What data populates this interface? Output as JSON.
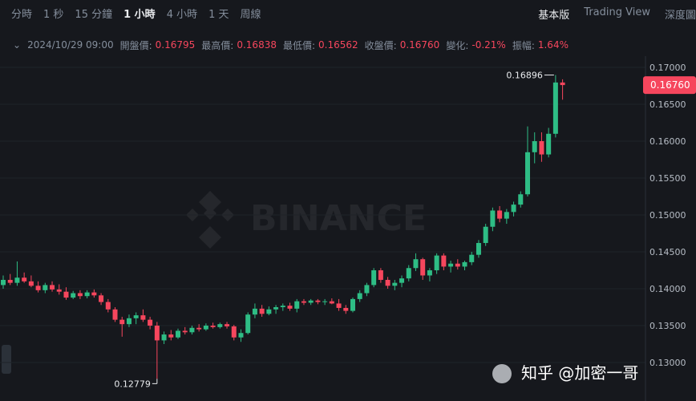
{
  "toolbar": {
    "intervals": [
      "分時",
      "1 秒",
      "15 分鐘",
      "1 小時",
      "4 小時",
      "1 天",
      "周線"
    ],
    "active": "1 小時",
    "views": [
      "基本版",
      "Trading View",
      "深度圖"
    ]
  },
  "header": {
    "time": "2024/10/29 09:00",
    "fields": [
      {
        "label": "開盤價:",
        "value": "0.16795"
      },
      {
        "label": "最高價:",
        "value": "0.16838"
      },
      {
        "label": "最低價:",
        "value": "0.16562"
      },
      {
        "label": "收盤價:",
        "value": "0.16760"
      },
      {
        "label": "變化:",
        "value": "-0.21%"
      },
      {
        "label": "振幅:",
        "value": "1.64%"
      }
    ]
  },
  "watermark": "BINANCE",
  "credit": "知乎 @加密一哥",
  "chart_data": {
    "type": "candlestick",
    "up_color": "#2ebd85",
    "down_color": "#f6465d",
    "ylim": [
      0.1256,
      0.171
    ],
    "yticks": [
      {
        "value": 0.17,
        "label": "0.17000"
      },
      {
        "value": 0.165,
        "label": "0.16500"
      },
      {
        "value": 0.16,
        "label": "0.16000"
      },
      {
        "value": 0.155,
        "label": "0.15500"
      },
      {
        "value": 0.15,
        "label": "0.15000"
      },
      {
        "value": 0.145,
        "label": "0.14500"
      },
      {
        "value": 0.14,
        "label": "0.14000"
      },
      {
        "value": 0.135,
        "label": "0.13500"
      },
      {
        "value": 0.13,
        "label": "0.13000"
      }
    ],
    "last_price": {
      "value": 0.1676,
      "label": "0.16760"
    },
    "max_annotation": 0.16896,
    "min_annotation": 0.12779,
    "open": [
      0.1405,
      0.1412,
      0.1408,
      0.1415,
      0.141,
      0.1404,
      0.1398,
      0.1405,
      0.1399,
      0.1396,
      0.1388,
      0.1394,
      0.139,
      0.1395,
      0.1391,
      0.1382,
      0.1372,
      0.1358,
      0.1352,
      0.136,
      0.1364,
      0.1358,
      0.135,
      0.133,
      0.1338,
      0.1334,
      0.1343,
      0.1341,
      0.1347,
      0.1345,
      0.135,
      0.1348,
      0.1352,
      0.1349,
      0.1334,
      0.134,
      0.1365,
      0.1373,
      0.1366,
      0.1372,
      0.1375,
      0.1377,
      0.1373,
      0.1383,
      0.1381,
      0.1384,
      0.1382,
      0.1383,
      0.138,
      0.1374,
      0.137,
      0.1386,
      0.1394,
      0.1405,
      0.1425,
      0.1412,
      0.1404,
      0.1408,
      0.1414,
      0.1428,
      0.144,
      0.1418,
      0.1425,
      0.1445,
      0.143,
      0.1434,
      0.143,
      0.1436,
      0.1446,
      0.1462,
      0.1484,
      0.1506,
      0.1495,
      0.1504,
      0.1514,
      0.1528,
      0.1585,
      0.16,
      0.1582,
      0.161,
      0.16795
    ],
    "high": [
      0.1418,
      0.142,
      0.1437,
      0.1422,
      0.1418,
      0.141,
      0.1408,
      0.141,
      0.1406,
      0.1402,
      0.1397,
      0.1398,
      0.1398,
      0.1399,
      0.1394,
      0.1386,
      0.1375,
      0.1362,
      0.1365,
      0.1368,
      0.1372,
      0.1362,
      0.1355,
      0.1342,
      0.1344,
      0.1346,
      0.1348,
      0.135,
      0.1352,
      0.1353,
      0.1354,
      0.1354,
      0.1355,
      0.1351,
      0.1345,
      0.1368,
      0.138,
      0.1378,
      0.1376,
      0.1378,
      0.138,
      0.1381,
      0.1386,
      0.1386,
      0.1386,
      0.1386,
      0.1386,
      0.1387,
      0.1386,
      0.1378,
      0.1388,
      0.1398,
      0.1408,
      0.1428,
      0.1428,
      0.1416,
      0.1412,
      0.1418,
      0.1432,
      0.1448,
      0.1442,
      0.1428,
      0.1448,
      0.1448,
      0.1438,
      0.144,
      0.1438,
      0.145,
      0.1466,
      0.1488,
      0.151,
      0.1512,
      0.1508,
      0.1518,
      0.1532,
      0.162,
      0.1612,
      0.1612,
      0.1618,
      0.16896,
      0.16838
    ],
    "low": [
      0.14,
      0.1405,
      0.1404,
      0.1408,
      0.1402,
      0.1395,
      0.1394,
      0.1396,
      0.1392,
      0.1385,
      0.1386,
      0.1386,
      0.1387,
      0.1388,
      0.1378,
      0.1368,
      0.1355,
      0.1335,
      0.1348,
      0.1352,
      0.1355,
      0.1345,
      0.12779,
      0.1325,
      0.133,
      0.1332,
      0.1338,
      0.1338,
      0.1342,
      0.1343,
      0.1346,
      0.1346,
      0.1346,
      0.133,
      0.1328,
      0.1338,
      0.136,
      0.1362,
      0.1364,
      0.1366,
      0.137,
      0.137,
      0.1368,
      0.1378,
      0.1378,
      0.1379,
      0.1378,
      0.1379,
      0.137,
      0.1366,
      0.1368,
      0.1382,
      0.139,
      0.1402,
      0.1408,
      0.14,
      0.1398,
      0.1402,
      0.141,
      0.1424,
      0.1412,
      0.141,
      0.142,
      0.1425,
      0.1422,
      0.1426,
      0.1425,
      0.1432,
      0.1442,
      0.1458,
      0.1478,
      0.149,
      0.1488,
      0.1498,
      0.151,
      0.1525,
      0.157,
      0.1572,
      0.1578,
      0.1605,
      0.16562
    ],
    "close": [
      0.1412,
      0.1408,
      0.1415,
      0.141,
      0.1404,
      0.1398,
      0.1405,
      0.1399,
      0.1396,
      0.1388,
      0.1394,
      0.139,
      0.1395,
      0.1391,
      0.1382,
      0.1372,
      0.1358,
      0.1352,
      0.136,
      0.1364,
      0.1358,
      0.135,
      0.133,
      0.1338,
      0.1334,
      0.1343,
      0.1341,
      0.1347,
      0.1345,
      0.135,
      0.1348,
      0.1352,
      0.1349,
      0.1334,
      0.134,
      0.1365,
      0.1373,
      0.1366,
      0.1372,
      0.1375,
      0.1377,
      0.1373,
      0.1383,
      0.1381,
      0.1384,
      0.1382,
      0.1383,
      0.138,
      0.1374,
      0.137,
      0.1386,
      0.1394,
      0.1405,
      0.1425,
      0.1412,
      0.1404,
      0.1408,
      0.1414,
      0.1428,
      0.144,
      0.1418,
      0.1425,
      0.1445,
      0.143,
      0.1434,
      0.143,
      0.1436,
      0.1446,
      0.1462,
      0.1484,
      0.1506,
      0.1495,
      0.1504,
      0.1514,
      0.1528,
      0.1585,
      0.16,
      0.1582,
      0.161,
      0.16795,
      0.1676
    ]
  }
}
